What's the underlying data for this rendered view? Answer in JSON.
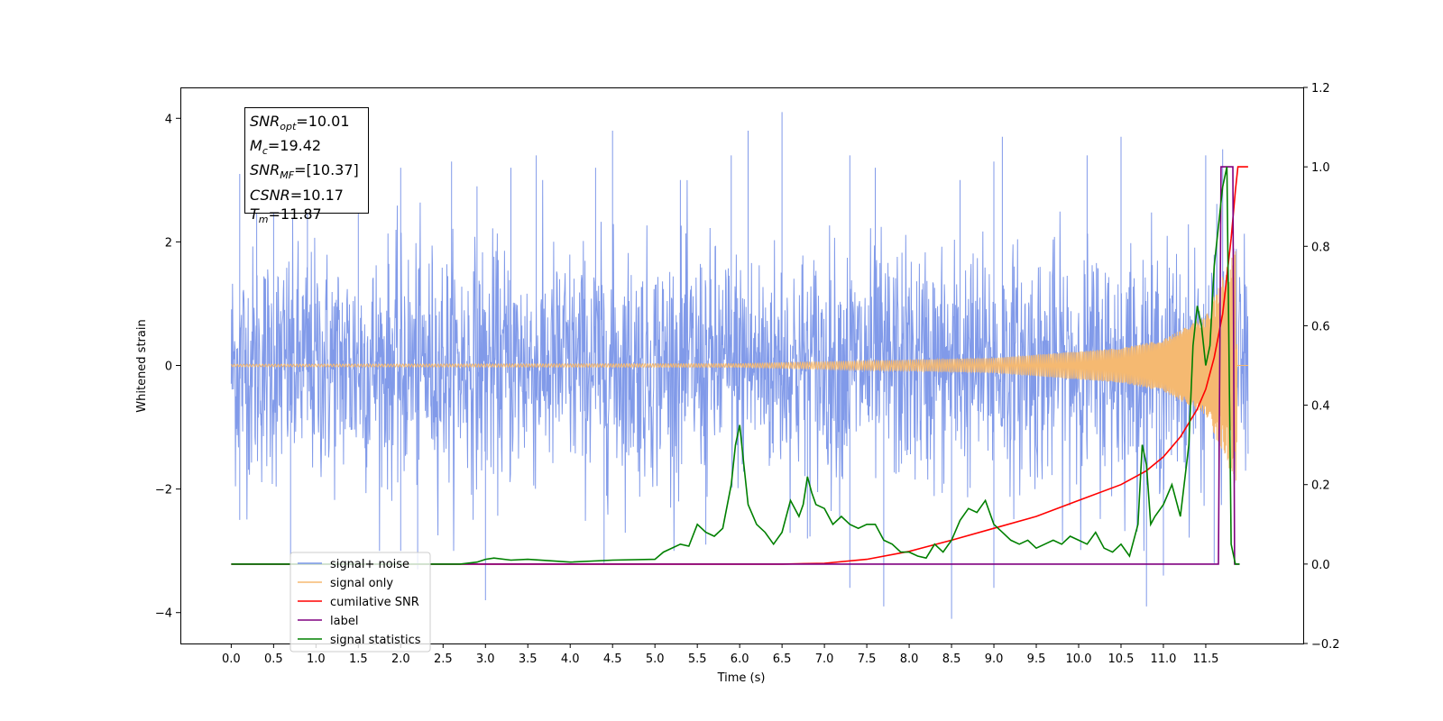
{
  "chart_data": {
    "type": "line",
    "xlabel": "Time (s)",
    "ylabel": "Whitened strain",
    "xlim": [
      -0.6,
      12.65
    ],
    "ylim_left": [
      -4.5,
      4.5
    ],
    "ylim_right": [
      -0.2,
      1.2
    ],
    "x_ticks": [
      "0.0",
      "0.5",
      "1.0",
      "1.5",
      "2.0",
      "2.5",
      "3.0",
      "3.5",
      "4.0",
      "4.5",
      "5.0",
      "5.5",
      "6.0",
      "6.5",
      "7.0",
      "7.5",
      "8.0",
      "8.5",
      "9.0",
      "9.5",
      "10.0",
      "10.5",
      "11.0",
      "11.5"
    ],
    "y_left_ticks": [
      "4",
      "2",
      "0",
      "−2",
      "−4"
    ],
    "y_left_tick_values": [
      4,
      2,
      0,
      -2,
      -4
    ],
    "y_right_ticks": [
      "1.2",
      "1.0",
      "0.8",
      "0.6",
      "0.4",
      "0.2",
      "0.0",
      "−0.2"
    ],
    "y_right_tick_values": [
      1.2,
      1.0,
      0.8,
      0.6,
      0.4,
      0.2,
      0.0,
      -0.2
    ],
    "annotation": {
      "snr_opt": "10.01",
      "mc": "19.42",
      "snr_mf": "[10.37]",
      "csnr": "10.17",
      "tm": "11.87"
    },
    "legend": {
      "placement": "lower-left",
      "entries": [
        {
          "label": "signal+ noise",
          "color": "#7a95e8"
        },
        {
          "label": "signal only",
          "color": "#f5b971"
        },
        {
          "label": "cumilative SNR",
          "color": "#ff0000"
        },
        {
          "label": "label",
          "color": "#800080"
        },
        {
          "label": "signal statistics",
          "color": "#008000"
        }
      ]
    },
    "series": [
      {
        "name": "signal+ noise",
        "axis": "left",
        "color": "#7a95e8",
        "duration": 12.0,
        "envelope_std": 1.0,
        "spikes": [
          [
            0.1,
            3.1
          ],
          [
            0.3,
            2.5
          ],
          [
            0.5,
            3.2
          ],
          [
            0.9,
            3.1
          ],
          [
            1.5,
            3.2
          ],
          [
            2.0,
            3.2
          ],
          [
            2.6,
            3.3
          ],
          [
            2.9,
            2.9
          ],
          [
            3.3,
            3.2
          ],
          [
            3.6,
            3.4
          ],
          [
            4.3,
            3.2
          ],
          [
            4.5,
            3.8
          ],
          [
            5.3,
            3.0
          ],
          [
            5.9,
            3.4
          ],
          [
            6.1,
            3.8
          ],
          [
            6.5,
            4.1
          ],
          [
            7.3,
            3.4
          ],
          [
            7.6,
            3.2
          ],
          [
            8.6,
            3.0
          ],
          [
            9.0,
            3.3
          ],
          [
            9.1,
            3.7
          ],
          [
            10.1,
            3.4
          ],
          [
            10.5,
            3.7
          ],
          [
            11.5,
            3.4
          ],
          [
            11.7,
            3.5
          ],
          [
            0.1,
            -2.5
          ],
          [
            0.7,
            -3.1
          ],
          [
            2.0,
            -3.0
          ],
          [
            2.2,
            -3.3
          ],
          [
            3.0,
            -3.8
          ],
          [
            4.4,
            -3.2
          ],
          [
            5.6,
            -2.9
          ],
          [
            6.8,
            -2.8
          ],
          [
            7.3,
            -3.6
          ],
          [
            7.7,
            -3.9
          ],
          [
            8.5,
            -4.1
          ],
          [
            9.0,
            -3.6
          ],
          [
            10.8,
            -3.9
          ],
          [
            11.0,
            -3.4
          ],
          [
            11.6,
            -3.2
          ]
        ]
      },
      {
        "name": "signal only",
        "axis": "left",
        "color": "#f5b971",
        "t_merge": 11.87,
        "amplitude_points": [
          [
            0,
            0.02
          ],
          [
            6.0,
            0.03
          ],
          [
            9.0,
            0.12
          ],
          [
            10.5,
            0.28
          ],
          [
            11.0,
            0.42
          ],
          [
            11.5,
            0.8
          ],
          [
            11.75,
            1.6
          ],
          [
            11.87,
            1.9
          ],
          [
            11.88,
            0.0
          ]
        ]
      },
      {
        "name": "cumilative SNR",
        "axis": "right",
        "color": "#ff0000",
        "x": [
          0,
          6.5,
          7.0,
          7.5,
          8.0,
          8.5,
          9.0,
          9.5,
          10.0,
          10.5,
          10.8,
          11.0,
          11.2,
          11.4,
          11.5,
          11.6,
          11.7,
          11.8,
          11.85,
          11.88,
          12.0
        ],
        "y": [
          0.0,
          0.0,
          0.002,
          0.012,
          0.032,
          0.06,
          0.09,
          0.12,
          0.16,
          0.2,
          0.235,
          0.27,
          0.32,
          0.39,
          0.44,
          0.52,
          0.63,
          0.82,
          0.94,
          1.0,
          1.0
        ]
      },
      {
        "name": "label",
        "axis": "right",
        "color": "#800080",
        "x": [
          0,
          11.65,
          11.68,
          11.82,
          11.84,
          11.9
        ],
        "y": [
          0.0,
          0.0,
          1.0,
          1.0,
          0.0,
          0.0
        ]
      },
      {
        "name": "signal statistics",
        "axis": "right",
        "color": "#008000",
        "x": [
          0,
          2.7,
          2.9,
          3.0,
          3.1,
          3.3,
          3.5,
          4.0,
          4.5,
          5.0,
          5.1,
          5.3,
          5.4,
          5.5,
          5.6,
          5.7,
          5.8,
          5.9,
          5.95,
          6.0,
          6.05,
          6.1,
          6.2,
          6.3,
          6.4,
          6.5,
          6.6,
          6.7,
          6.75,
          6.8,
          6.85,
          6.9,
          7.0,
          7.1,
          7.2,
          7.3,
          7.4,
          7.5,
          7.6,
          7.7,
          7.8,
          7.9,
          8.0,
          8.1,
          8.2,
          8.3,
          8.4,
          8.5,
          8.6,
          8.7,
          8.8,
          8.9,
          9.0,
          9.1,
          9.2,
          9.3,
          9.4,
          9.5,
          9.6,
          9.7,
          9.8,
          9.9,
          10.0,
          10.1,
          10.2,
          10.3,
          10.4,
          10.5,
          10.6,
          10.7,
          10.75,
          10.8,
          10.85,
          10.9,
          11.0,
          11.1,
          11.2,
          11.3,
          11.35,
          11.4,
          11.45,
          11.5,
          11.55,
          11.6,
          11.65,
          11.7,
          11.75,
          11.8,
          11.85,
          11.9
        ],
        "y": [
          0.0,
          0.0,
          0.005,
          0.012,
          0.015,
          0.01,
          0.012,
          0.005,
          0.01,
          0.012,
          0.03,
          0.05,
          0.045,
          0.1,
          0.08,
          0.07,
          0.09,
          0.2,
          0.3,
          0.35,
          0.25,
          0.15,
          0.1,
          0.08,
          0.05,
          0.08,
          0.16,
          0.12,
          0.15,
          0.22,
          0.18,
          0.15,
          0.14,
          0.1,
          0.12,
          0.1,
          0.09,
          0.1,
          0.1,
          0.06,
          0.05,
          0.03,
          0.03,
          0.02,
          0.015,
          0.05,
          0.03,
          0.06,
          0.11,
          0.14,
          0.13,
          0.16,
          0.1,
          0.08,
          0.06,
          0.05,
          0.06,
          0.04,
          0.05,
          0.06,
          0.05,
          0.07,
          0.06,
          0.05,
          0.08,
          0.04,
          0.03,
          0.05,
          0.02,
          0.1,
          0.3,
          0.25,
          0.1,
          0.12,
          0.15,
          0.2,
          0.12,
          0.3,
          0.55,
          0.65,
          0.6,
          0.5,
          0.55,
          0.75,
          0.85,
          0.95,
          1.0,
          0.05,
          0.0,
          0.0
        ]
      }
    ]
  }
}
